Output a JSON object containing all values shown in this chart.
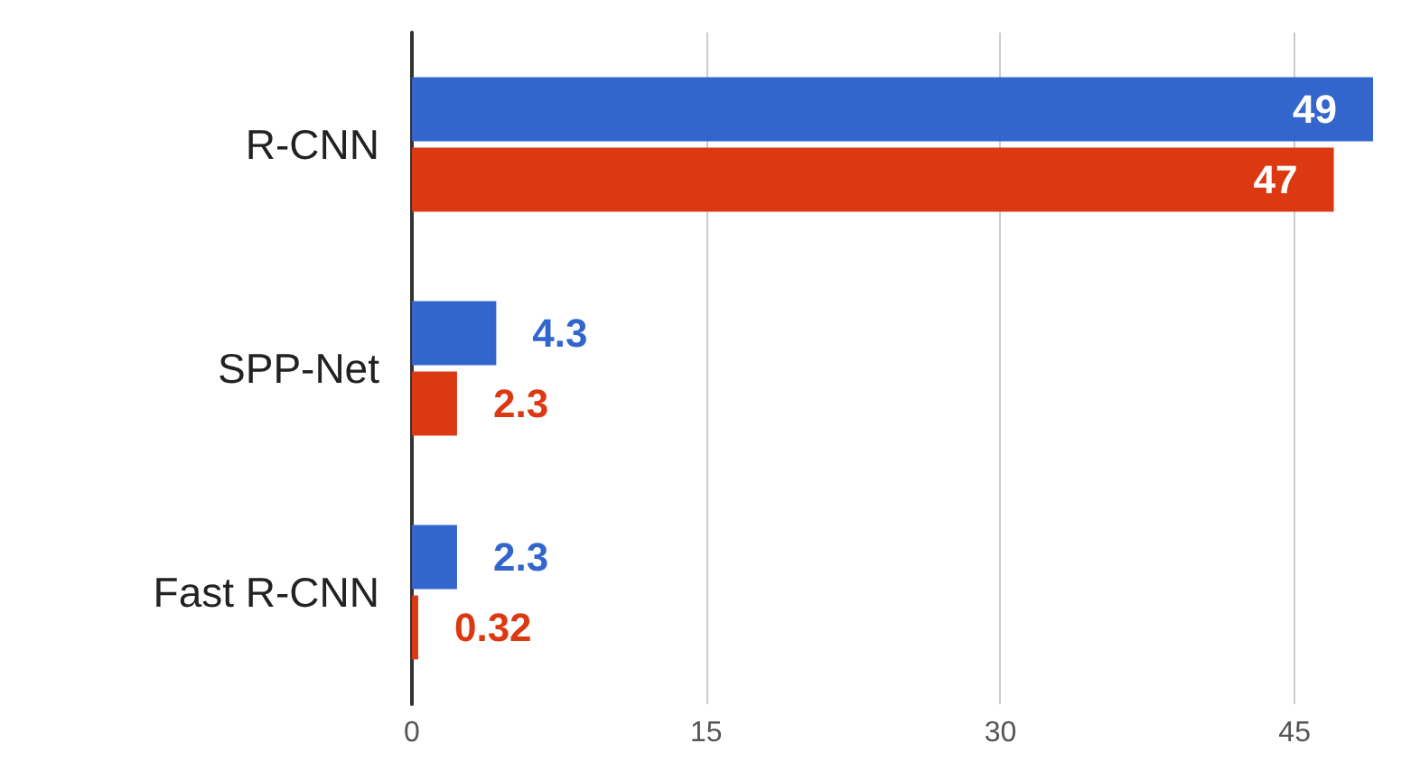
{
  "chart_data": {
    "type": "bar",
    "orientation": "horizontal",
    "categories": [
      "R-CNN",
      "SPP-Net",
      "Fast R-CNN"
    ],
    "series": [
      {
        "color": "#3366cc",
        "values": [
          49,
          4.3,
          2.3
        ]
      },
      {
        "color": "#dc3912",
        "values": [
          47,
          2.3,
          0.32
        ]
      }
    ],
    "xlim": [
      0,
      49
    ],
    "xticks": [
      0,
      15,
      30,
      45
    ],
    "grid": "x",
    "data_labels": true
  }
}
